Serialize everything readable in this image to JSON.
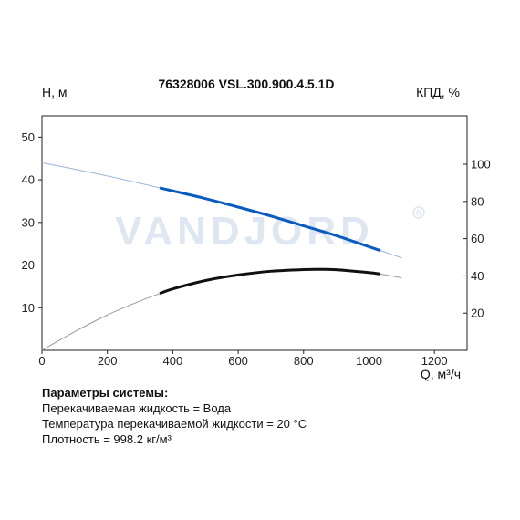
{
  "chart_data": {
    "type": "line",
    "title": "76328006 VSL.300.900.4.5.1D",
    "watermark": "VANDJORD",
    "ylabel_left": "H, м",
    "ylabel_right": "КПД, %",
    "xlabel": "Q, м³/ч",
    "xlim": [
      0,
      1300
    ],
    "xticks": [
      0,
      200,
      400,
      600,
      800,
      1000,
      1200
    ],
    "ylim_left": [
      0,
      55
    ],
    "yticks_left": [
      10,
      20,
      30,
      40,
      50
    ],
    "ylim_right": [
      0,
      126
    ],
    "yticks_right": [
      20,
      40,
      60,
      80,
      100
    ],
    "grid": false,
    "series": [
      {
        "axis": "left",
        "color": "#0a5bbf",
        "full_range_color": "#9ab6d9",
        "x": [
          0,
          100,
          200,
          300,
          360,
          400,
          500,
          600,
          700,
          800,
          900,
          1000,
          1035,
          1100
        ],
        "y": [
          44.0,
          42.5,
          40.9,
          39.2,
          38.1,
          37.4,
          35.6,
          33.6,
          31.5,
          29.2,
          26.9,
          24.3,
          23.4,
          21.7
        ],
        "operating_range": [
          360,
          1035
        ]
      },
      {
        "axis": "right",
        "color": "#111111",
        "full_range_color": "#999999",
        "x": [
          0,
          100,
          200,
          300,
          360,
          400,
          500,
          600,
          700,
          800,
          850,
          900,
          1000,
          1035,
          1100
        ],
        "y": [
          0,
          10,
          19,
          26.5,
          30.5,
          33,
          37.5,
          40.5,
          42.5,
          43.4,
          43.5,
          43.3,
          41.8,
          41.0,
          39.0
        ],
        "operating_range": [
          360,
          1035
        ]
      }
    ]
  },
  "params": {
    "title": "Параметры системы:",
    "lines": [
      "Перекачиваемая жидкость = Вода",
      "Температура перекачиваемой жидкости = 20 °C",
      "Плотность = 998.2 кг/м³"
    ]
  }
}
